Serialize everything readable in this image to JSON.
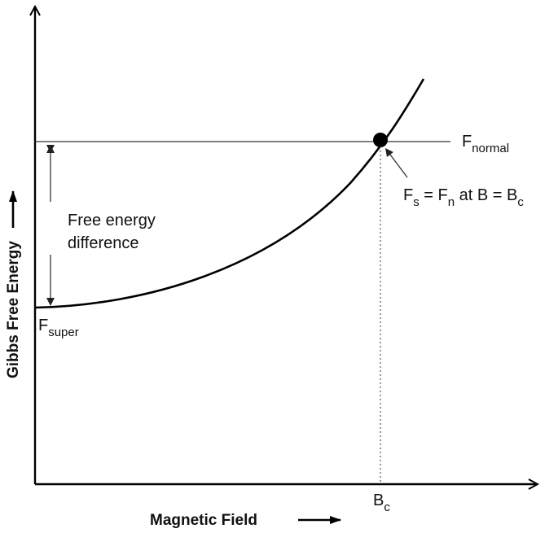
{
  "axes": {
    "y_label": "Gibbs Free Energy",
    "x_label": "Magnetic Field"
  },
  "labels": {
    "f_normal_main": "F",
    "f_normal_sub": "normal",
    "f_super_main": "F",
    "f_super_sub": "super",
    "free_energy_line1": "Free energy",
    "free_energy_line2": "difference",
    "eq_fs_main": "F",
    "eq_fs_sub": "s",
    "eq_equals": " = F",
    "eq_fn_sub": "n",
    "eq_at": " at B = B",
    "eq_bc_sub": "c",
    "bc_main": "B",
    "bc_sub": "c"
  }
}
